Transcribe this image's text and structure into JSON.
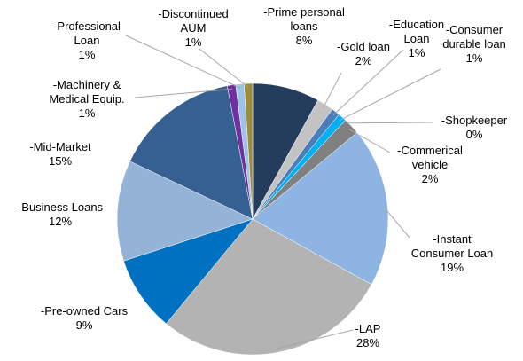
{
  "chart_data": {
    "type": "pie",
    "categories": [
      "-Prime personal loans",
      "-Gold loan",
      "-Education Loan",
      "-Consumer durable loan",
      "-Shopkeeper",
      "-Commerical vehicle",
      "-Instant Consumer Loan",
      "-LAP",
      "-Pre-owned Cars",
      "-Business Loans",
      "-Mid-Market",
      "-Machinery & Medical Equip.",
      "-Professional Loan",
      "-Discontinued AUM"
    ],
    "values": [
      8,
      2,
      1,
      1,
      0,
      2,
      19,
      28,
      9,
      12,
      15,
      1,
      1,
      1
    ],
    "value_labels": [
      "8%",
      "2%",
      "1%",
      "1%",
      "0%",
      "2%",
      "19%",
      "28%",
      "9%",
      "12%",
      "15%",
      "1%",
      "1%",
      "1%"
    ],
    "colors": [
      "#253d5c",
      "#c3c3c3",
      "#4a7ebb",
      "#00b0f0",
      "#404040",
      "#808080",
      "#8eb4e3",
      "#b3b3b3",
      "#0070c0",
      "#95b3d7",
      "#366092",
      "#7030a0",
      "#9dc3e6",
      "#9c8b3a"
    ]
  }
}
